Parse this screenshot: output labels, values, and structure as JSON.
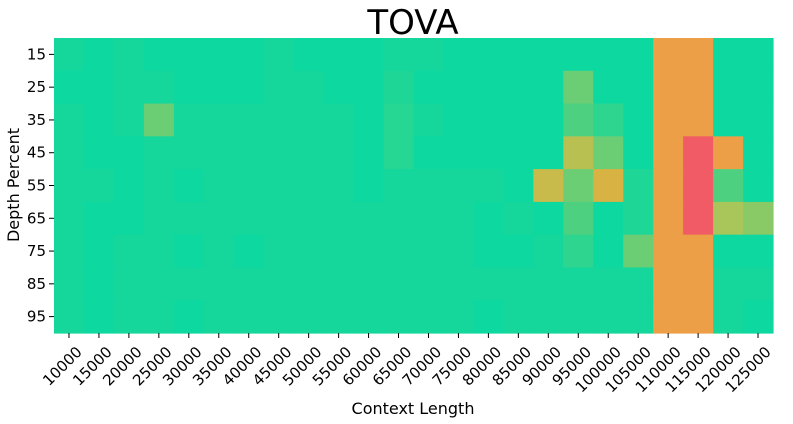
{
  "chart_data": {
    "type": "heatmap",
    "title": "TOVA",
    "xlabel": "Context Length",
    "ylabel": "Depth Percent",
    "x": [
      10000,
      15000,
      20000,
      25000,
      30000,
      35000,
      40000,
      45000,
      50000,
      55000,
      60000,
      65000,
      70000,
      75000,
      80000,
      85000,
      90000,
      95000,
      100000,
      105000,
      110000,
      115000,
      120000,
      125000
    ],
    "y": [
      15,
      25,
      35,
      45,
      55,
      65,
      75,
      85,
      95
    ],
    "x_tick_labels": [
      "10000",
      "15000",
      "20000",
      "25000",
      "30000",
      "35000",
      "40000",
      "45000",
      "50000",
      "55000",
      "60000",
      "65000",
      "70000",
      "75000",
      "80000",
      "85000",
      "90000",
      "95000",
      "100000",
      "105000",
      "110000",
      "115000",
      "120000",
      "125000"
    ],
    "y_tick_labels": [
      "15",
      "25",
      "35",
      "45",
      "55",
      "65",
      "75",
      "85",
      "95"
    ],
    "values": [
      [
        0.95,
        1.0,
        0.95,
        1.0,
        1.0,
        1.0,
        1.0,
        0.95,
        1.0,
        1.0,
        1.0,
        0.95,
        0.95,
        1.0,
        1.0,
        1.0,
        1.0,
        1.0,
        1.0,
        1.0,
        0.3,
        0.3,
        1.0,
        1.0
      ],
      [
        1.0,
        1.0,
        0.95,
        0.95,
        1.0,
        1.0,
        1.0,
        0.95,
        0.95,
        1.0,
        1.0,
        0.9,
        1.0,
        1.0,
        1.0,
        1.0,
        1.0,
        0.7,
        1.0,
        1.0,
        0.3,
        0.3,
        1.0,
        1.0
      ],
      [
        0.95,
        1.0,
        0.95,
        0.7,
        0.95,
        0.95,
        0.95,
        0.95,
        0.95,
        0.95,
        1.0,
        0.85,
        0.95,
        1.0,
        1.0,
        1.0,
        1.0,
        0.75,
        0.8,
        1.0,
        0.3,
        0.3,
        1.0,
        1.0
      ],
      [
        0.95,
        1.0,
        1.0,
        0.95,
        0.95,
        0.95,
        0.95,
        0.95,
        0.95,
        0.95,
        1.0,
        0.85,
        1.0,
        1.0,
        1.0,
        1.0,
        1.0,
        0.55,
        0.7,
        1.0,
        0.3,
        0.05,
        0.3,
        1.0
      ],
      [
        0.95,
        0.95,
        1.0,
        0.95,
        1.0,
        0.95,
        0.95,
        0.95,
        0.95,
        0.95,
        1.0,
        0.95,
        0.95,
        0.95,
        0.95,
        1.0,
        0.5,
        0.7,
        0.45,
        0.9,
        0.3,
        0.05,
        0.75,
        1.0
      ],
      [
        0.95,
        1.0,
        1.0,
        0.95,
        0.95,
        0.95,
        0.95,
        0.95,
        0.95,
        0.95,
        0.95,
        0.95,
        0.95,
        0.95,
        1.0,
        0.95,
        1.0,
        0.75,
        1.0,
        0.9,
        0.3,
        0.05,
        0.6,
        0.65
      ],
      [
        0.95,
        1.0,
        0.95,
        0.95,
        1.0,
        0.95,
        1.0,
        0.95,
        0.95,
        0.95,
        0.95,
        0.95,
        0.95,
        0.95,
        1.0,
        1.0,
        0.95,
        0.8,
        1.0,
        0.7,
        0.3,
        0.3,
        1.0,
        1.0
      ],
      [
        0.95,
        1.0,
        0.95,
        0.95,
        0.95,
        0.95,
        0.95,
        0.95,
        0.95,
        0.95,
        0.95,
        0.95,
        0.95,
        0.95,
        0.95,
        0.95,
        0.95,
        0.95,
        0.95,
        0.95,
        0.3,
        0.3,
        0.95,
        0.95
      ],
      [
        0.95,
        1.0,
        0.95,
        0.95,
        1.0,
        0.95,
        0.95,
        0.95,
        0.95,
        0.95,
        0.95,
        0.95,
        0.95,
        0.95,
        1.0,
        0.95,
        0.95,
        0.95,
        0.95,
        0.95,
        0.3,
        0.3,
        0.95,
        1.0
      ]
    ],
    "colormap": [
      "#f0496c",
      "#f0904f",
      "#e8ad3c",
      "#a8c659",
      "#2ed58e",
      "#0dd8a0"
    ],
    "grid": false,
    "legend": "none"
  }
}
